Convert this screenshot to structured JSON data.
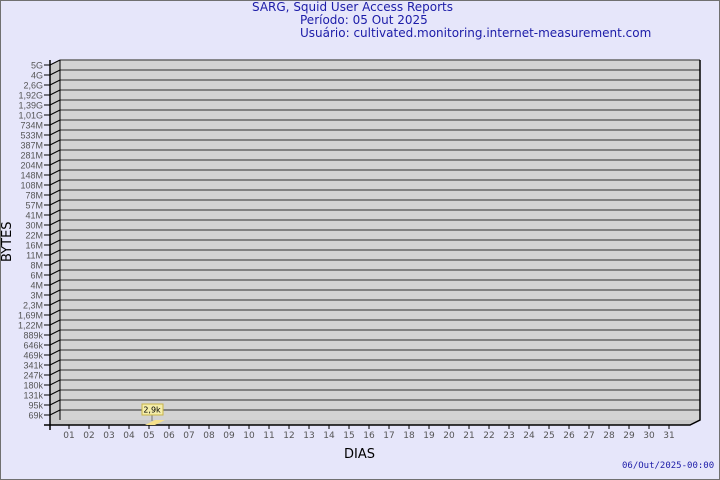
{
  "header": {
    "title": "SARG, Squid User Access Reports",
    "period": "Período: 05 Out 2025",
    "user": "Usuário: cultivated.monitoring.internet-measurement.com"
  },
  "footer": {
    "timestamp": "06/Out/2025-00:00"
  },
  "colors": {
    "background": "#e6e6fa",
    "plot": "#d3d3d3",
    "bar": "#f5e08a",
    "text": "#1c1ca8"
  },
  "chart_data": {
    "type": "bar",
    "title": "SARG, Squid User Access Reports",
    "xlabel": "DIAS",
    "ylabel": "BYTES",
    "categories": [
      "01",
      "02",
      "03",
      "04",
      "05",
      "06",
      "07",
      "08",
      "09",
      "10",
      "11",
      "12",
      "13",
      "14",
      "15",
      "16",
      "17",
      "18",
      "19",
      "20",
      "21",
      "22",
      "23",
      "24",
      "25",
      "26",
      "27",
      "28",
      "29",
      "30",
      "31"
    ],
    "y_ticks": [
      "5G",
      "4G",
      "2,6G",
      "1,92G",
      "1,39G",
      "1,01G",
      "734M",
      "533M",
      "387M",
      "281M",
      "204M",
      "148M",
      "108M",
      "78M",
      "57M",
      "41M",
      "30M",
      "22M",
      "16M",
      "11M",
      "8M",
      "6M",
      "4M",
      "3M",
      "2,3M",
      "1,69M",
      "1,22M",
      "889k",
      "646k",
      "469k",
      "341k",
      "247k",
      "180k",
      "131k",
      "95k",
      "69k"
    ],
    "y_scale": "log",
    "grid": true,
    "series": [
      {
        "values": [
          {
            "day": "05",
            "bytes": 2900,
            "label": "2,9k"
          }
        ]
      }
    ]
  }
}
